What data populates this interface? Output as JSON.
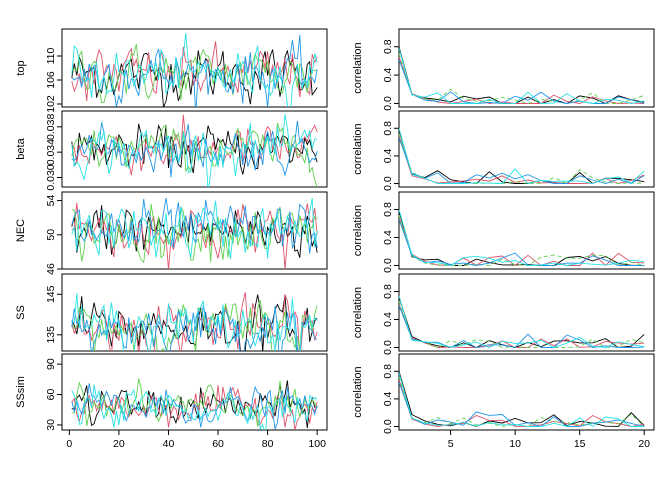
{
  "chart_data": {
    "type": "line",
    "layout": "5 rows x 2 columns (left: trace plots, right: autocorrelation plots)",
    "chains": 5,
    "chain_colors": [
      "#000000",
      "#DF536B",
      "#61D04F",
      "#2297E6",
      "#28E2E5"
    ],
    "trace_x_range": [
      1,
      100
    ],
    "trace_x_ticks": [
      0,
      20,
      40,
      60,
      80,
      100
    ],
    "acf_lags": [
      1,
      20
    ],
    "acf_x_ticks": [
      5,
      10,
      15,
      20
    ],
    "acf_ylabel": "correlation",
    "acf_y_ticks": [
      "0.0",
      "0.4",
      "0.8"
    ],
    "acf_ylim": [
      -0.05,
      1.05
    ],
    "panels": [
      {
        "parameter": "top",
        "ylim": [
          101.5,
          114.5
        ],
        "y_ticks": [
          102,
          106,
          110
        ],
        "trace_mean": 107,
        "trace_sd": 2.2,
        "acf_lag1": [
          0.8,
          0.66,
          0.7,
          0.62,
          0.78
        ]
      },
      {
        "parameter": "beta",
        "ylim": [
          0.0285,
          0.0405
        ],
        "y_ticks": [
          0.03,
          0.034,
          0.038
        ],
        "trace_mean": 0.0345,
        "trace_sd": 0.0018,
        "acf_lag1": [
          0.78,
          0.7,
          0.72,
          0.66,
          0.8
        ]
      },
      {
        "parameter": "NEC",
        "ylim": [
          46,
          55
        ],
        "y_ticks": [
          46,
          50,
          54
        ],
        "trace_mean": 50.5,
        "trace_sd": 1.6,
        "acf_lag1": [
          0.78,
          0.7,
          0.72,
          0.66,
          0.8
        ]
      },
      {
        "parameter": "SS",
        "ylim": [
          131,
          150
        ],
        "y_ticks": [
          135,
          145
        ],
        "trace_mean": 137,
        "trace_sd": 3.2,
        "acf_lag1": [
          0.72,
          0.62,
          0.66,
          0.6,
          0.74
        ]
      },
      {
        "parameter": "SSsim",
        "ylim": [
          25,
          100
        ],
        "y_ticks": [
          30,
          60,
          90
        ],
        "trace_mean": 48,
        "trace_sd": 9,
        "acf_lag1": [
          0.8,
          0.68,
          0.72,
          0.64,
          0.78
        ]
      }
    ]
  }
}
